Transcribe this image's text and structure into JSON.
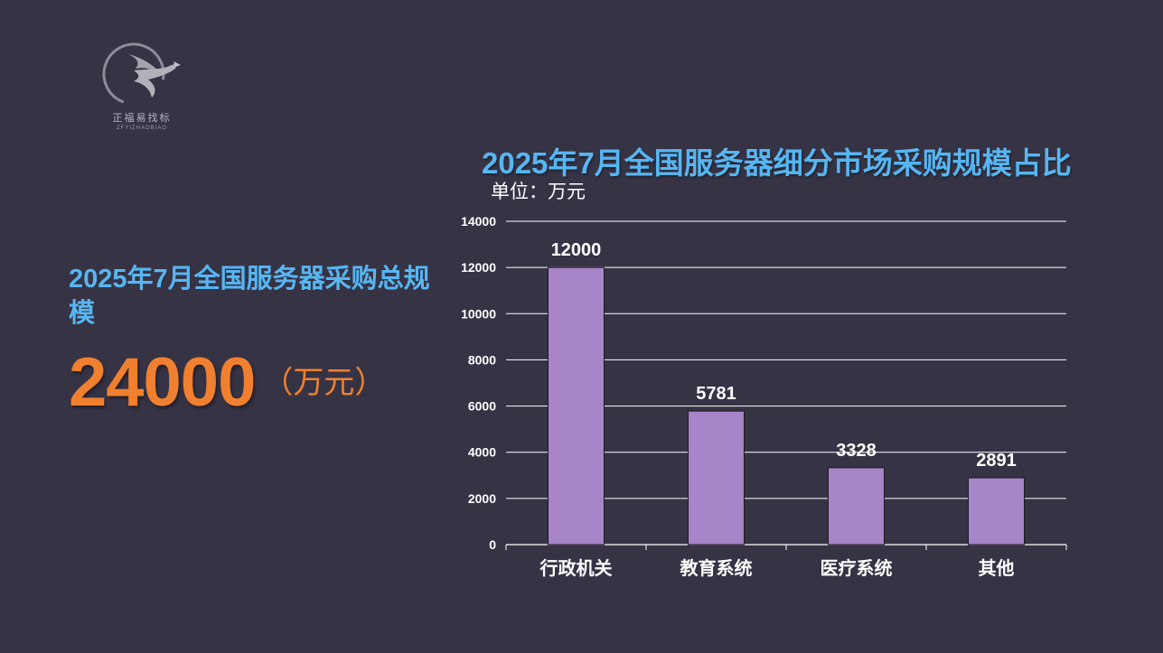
{
  "logo": {
    "icon": "eagle-logo-icon",
    "name": "正福易找标",
    "subtitle": "ZFYIZHAOBIAO"
  },
  "summary": {
    "title": "2025年7月全国服务器采购总规模",
    "value": "24000",
    "unit": "（万元）"
  },
  "chart_data": {
    "type": "bar",
    "title": "2025年7月全国服务器细分市场采购规模占比",
    "unit_label": "单位：万元",
    "categories": [
      "行政机关",
      "教育系统",
      "医疗系统",
      "其他"
    ],
    "values": [
      12000,
      5781,
      3328,
      2891
    ],
    "ylim": [
      0,
      14000
    ],
    "yticks": [
      0,
      2000,
      4000,
      6000,
      8000,
      10000,
      12000,
      14000
    ],
    "grid": true,
    "legend": "none",
    "colors": {
      "bar": "#a884c9",
      "grid": "#ffffff",
      "text": "#ffffff"
    }
  }
}
